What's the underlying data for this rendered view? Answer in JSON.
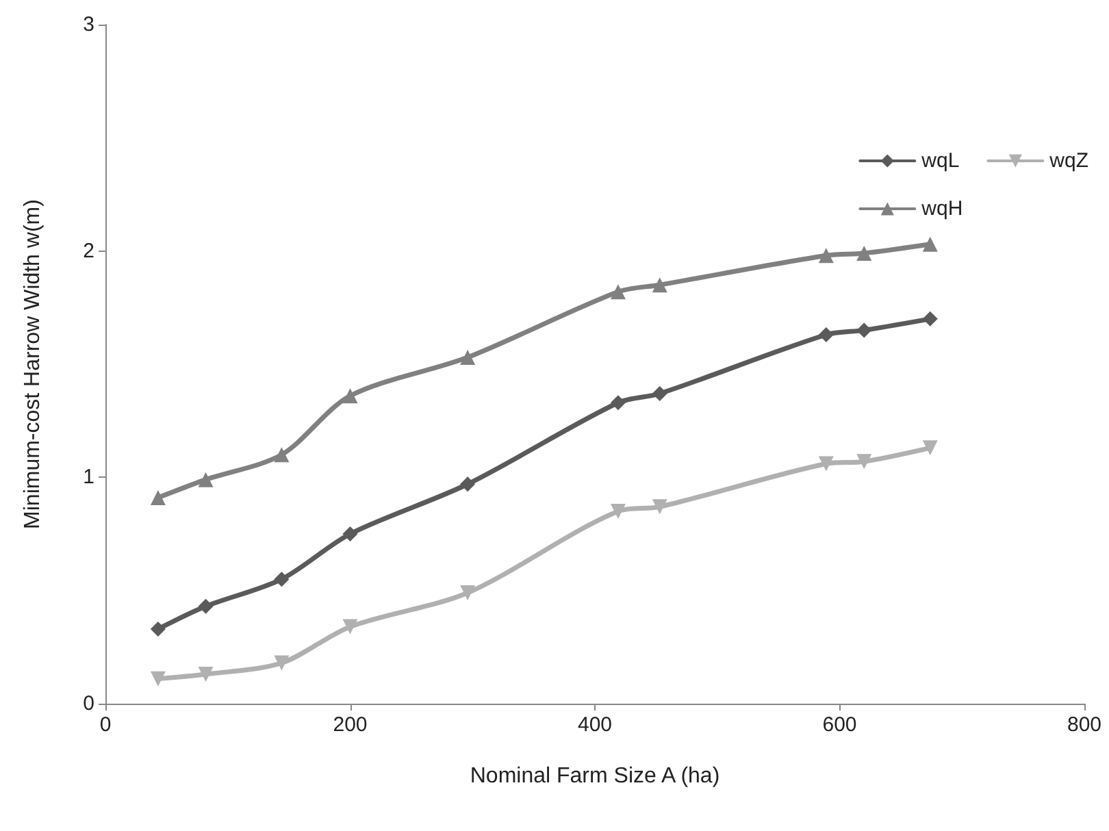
{
  "chart_data": {
    "type": "line",
    "xlabel": "Nominal Farm Size A (ha)",
    "ylabel": "Minimum-cost Harrow Width w(m)",
    "x": [
      43,
      82,
      144,
      200,
      296,
      419,
      453,
      589,
      620,
      674
    ],
    "series": [
      {
        "name": "wqL",
        "color": "#5a5a5a",
        "marker": "diamond",
        "values": [
          0.33,
          0.43,
          0.55,
          0.75,
          0.97,
          1.33,
          1.37,
          1.63,
          1.65,
          1.7
        ]
      },
      {
        "name": "wqZ",
        "color": "#b0b0b0",
        "marker": "triangle-down",
        "values": [
          0.11,
          0.13,
          0.18,
          0.34,
          0.49,
          0.85,
          0.87,
          1.06,
          1.07,
          1.13
        ]
      },
      {
        "name": "wqH",
        "color": "#808080",
        "marker": "triangle",
        "values": [
          0.91,
          0.99,
          1.1,
          1.36,
          1.53,
          1.82,
          1.85,
          1.98,
          1.99,
          2.03
        ]
      }
    ],
    "xlim": [
      0,
      800
    ],
    "xticks": [
      0,
      200,
      400,
      600,
      800
    ],
    "ylim": [
      0,
      3
    ],
    "yticks": [
      0,
      1,
      2,
      3
    ],
    "grid": false,
    "legend": "right",
    "line_style": "solid"
  }
}
